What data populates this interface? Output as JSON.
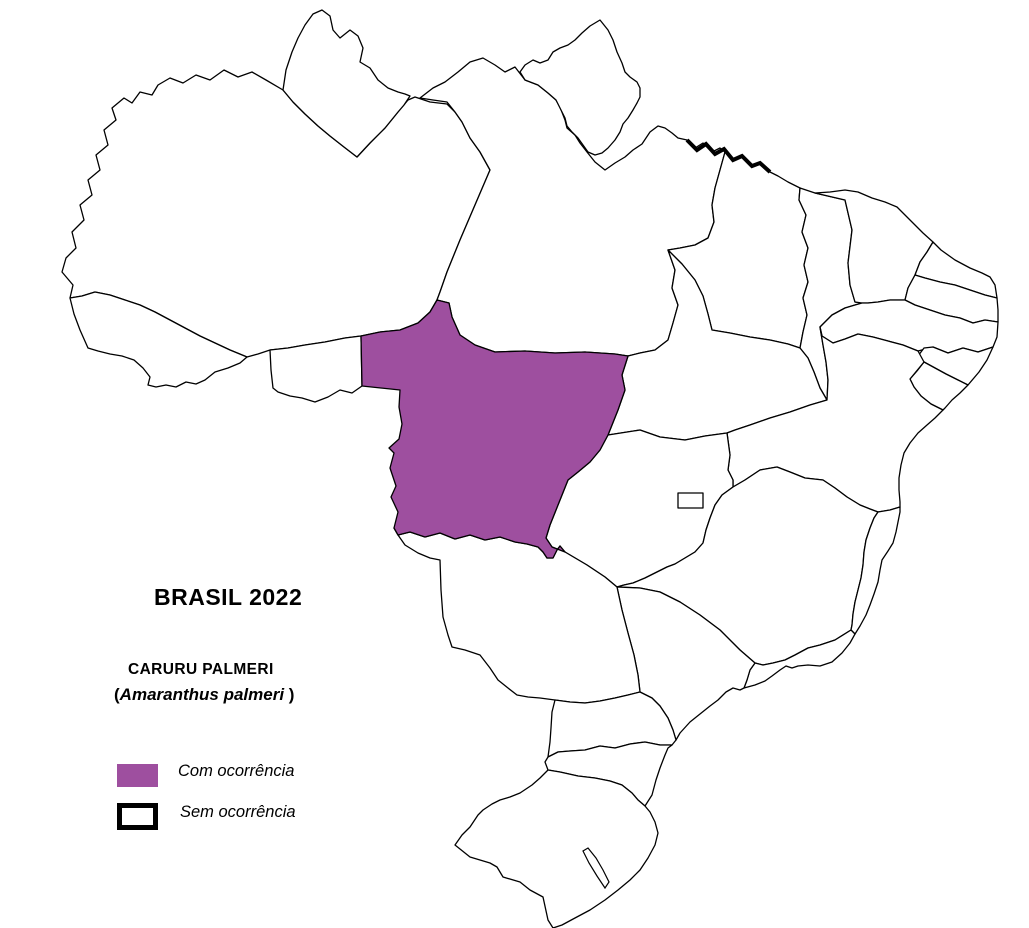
{
  "title": "BRASIL 2022",
  "species": {
    "common_name": "CARURU PALMERI",
    "scientific_prefix": "(",
    "scientific_name": "Amaranthus palmeri",
    "scientific_suffix": " )"
  },
  "legend": {
    "with_occurrence": {
      "label": "Com ocorrência",
      "swatch_color": "#9e4f9f"
    },
    "without_occurrence": {
      "label": "Sem ocorrência",
      "swatch_color": "#ffffff",
      "swatch_border_color": "#000000"
    }
  },
  "map": {
    "country": "Brasil",
    "year": "2022",
    "outline_color": "#000000",
    "no_occurrence_fill": "#ffffff",
    "states": [
      {
        "id": "AM",
        "name": "Amazonas",
        "occurrence": false
      },
      {
        "id": "RR",
        "name": "Roraima",
        "occurrence": false
      },
      {
        "id": "PA",
        "name": "Pará",
        "occurrence": false
      },
      {
        "id": "AP",
        "name": "Amapá",
        "occurrence": false
      },
      {
        "id": "AC",
        "name": "Acre",
        "occurrence": false
      },
      {
        "id": "RO",
        "name": "Rondônia",
        "occurrence": false
      },
      {
        "id": "MA",
        "name": "Maranhão",
        "occurrence": false
      },
      {
        "id": "PI",
        "name": "Piauí",
        "occurrence": false
      },
      {
        "id": "CE",
        "name": "Ceará",
        "occurrence": false
      },
      {
        "id": "RN",
        "name": "Rio Grande do Norte",
        "occurrence": false
      },
      {
        "id": "PB",
        "name": "Paraíba",
        "occurrence": false
      },
      {
        "id": "PE",
        "name": "Pernambuco",
        "occurrence": false
      },
      {
        "id": "AL",
        "name": "Alagoas",
        "occurrence": false
      },
      {
        "id": "SE",
        "name": "Sergipe",
        "occurrence": false
      },
      {
        "id": "TO",
        "name": "Tocantins",
        "occurrence": false
      },
      {
        "id": "BA",
        "name": "Bahia",
        "occurrence": false
      },
      {
        "id": "GO",
        "name": "Goiás",
        "occurrence": false
      },
      {
        "id": "MG",
        "name": "Minas Gerais",
        "occurrence": false
      },
      {
        "id": "ES",
        "name": "Espírito Santo",
        "occurrence": false
      },
      {
        "id": "RJ",
        "name": "Rio de Janeiro",
        "occurrence": false
      },
      {
        "id": "SP",
        "name": "São Paulo",
        "occurrence": false
      },
      {
        "id": "MS",
        "name": "Mato Grosso do Sul",
        "occurrence": false
      },
      {
        "id": "MT",
        "name": "Mato Grosso",
        "occurrence": true
      },
      {
        "id": "PR",
        "name": "Paraná",
        "occurrence": false
      },
      {
        "id": "SC",
        "name": "Santa Catarina",
        "occurrence": false
      },
      {
        "id": "RS",
        "name": "Rio Grande do Sul",
        "occurrence": false
      },
      {
        "id": "DF",
        "name": "Distrito Federal",
        "occurrence": false
      }
    ]
  }
}
